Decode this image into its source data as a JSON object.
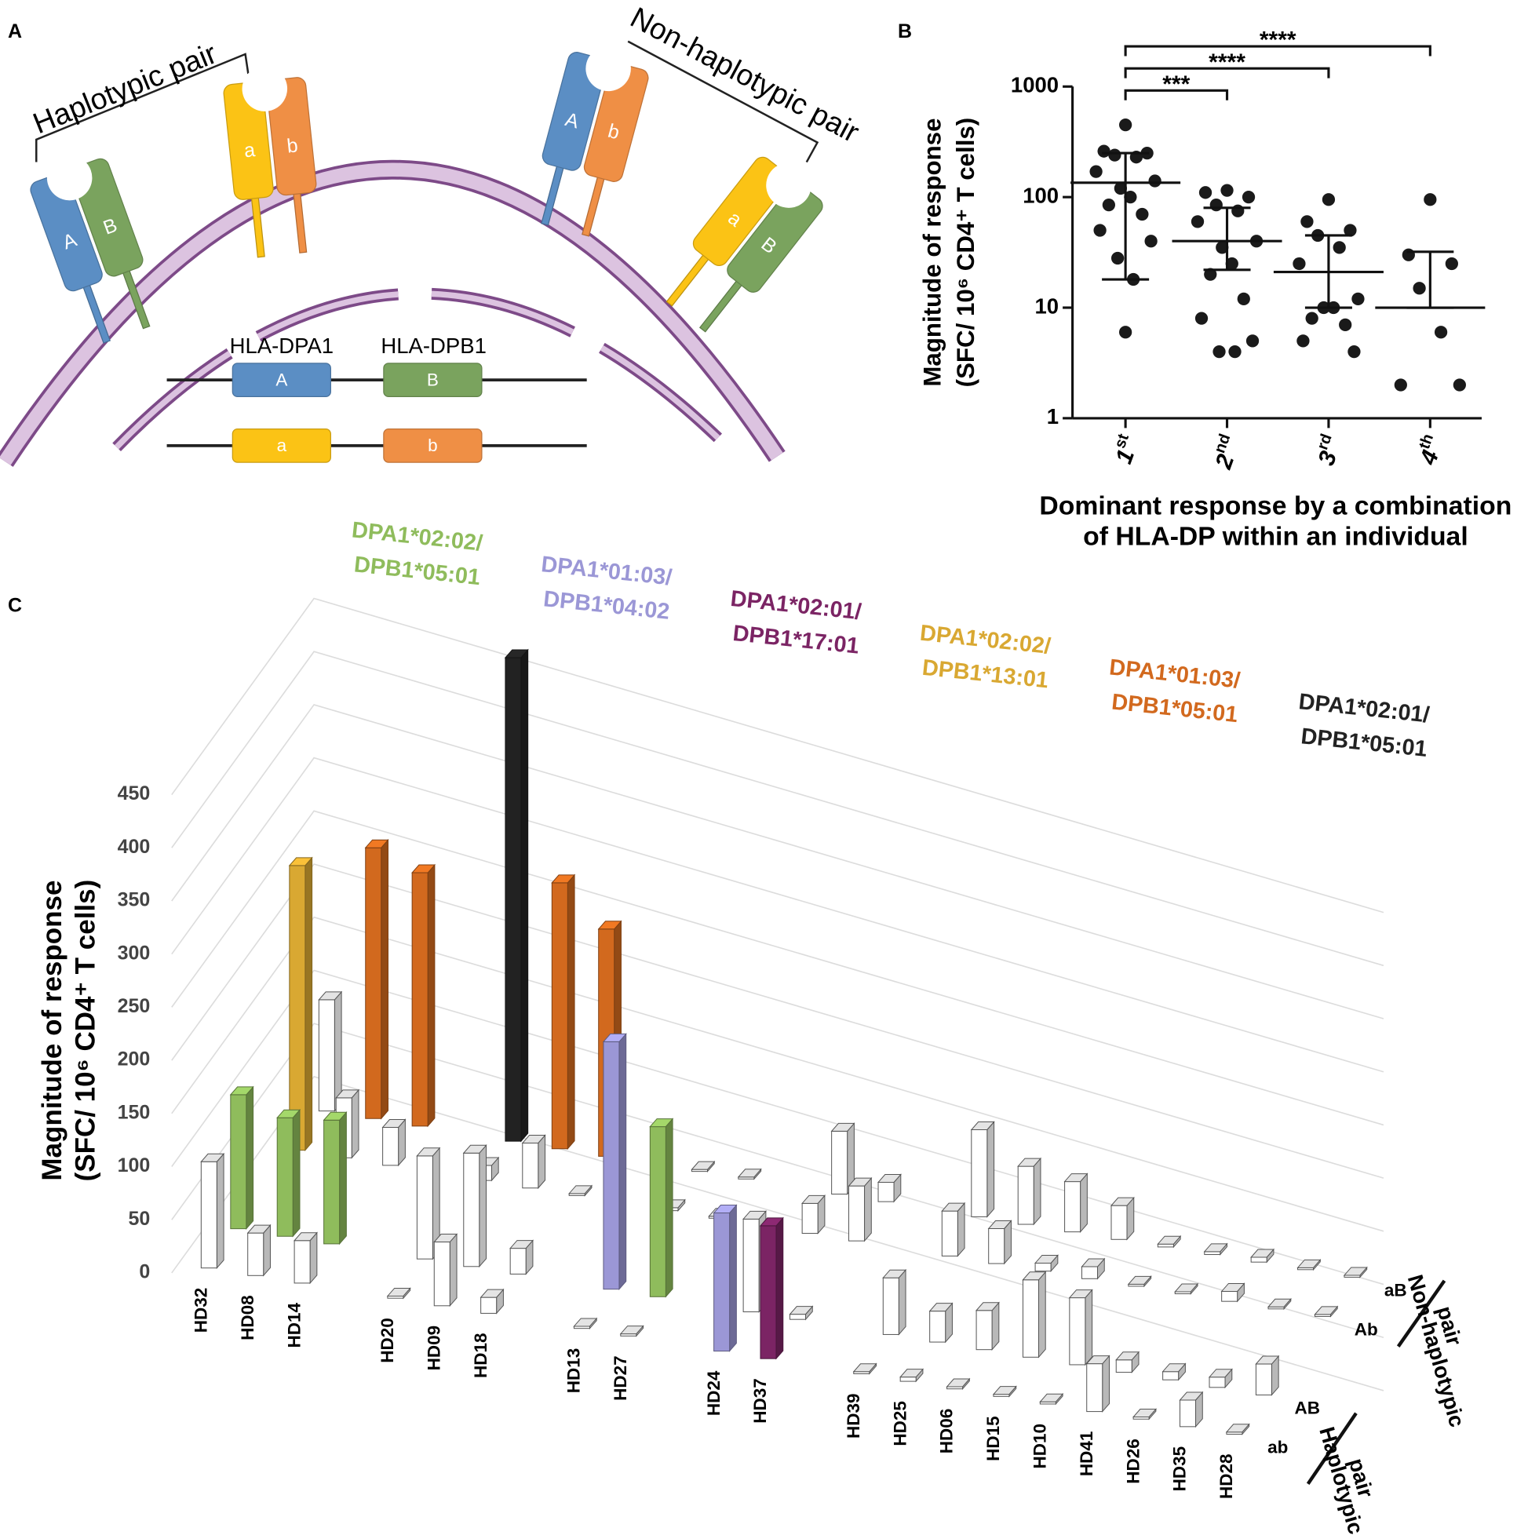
{
  "panel_labels": [
    "A",
    "B",
    "C"
  ],
  "diagram": {
    "bracket_labels": [
      "Haplotypic pair",
      "Non-haplotypic pair"
    ],
    "gene_labels": [
      "HLA-DPA1",
      "HLA-DPB1"
    ],
    "molecules": [
      [
        "A",
        "B"
      ],
      [
        "a",
        "b"
      ],
      [
        "A",
        "b"
      ],
      [
        "a",
        "B"
      ]
    ],
    "genes": [
      [
        "A",
        "B"
      ],
      [
        "a",
        "b"
      ]
    ]
  },
  "chart_data": [
    {
      "type": "dot_plot",
      "y_label": [
        "Magnitude of response",
        "(SFC/ 10⁶ CD4⁺ T cells)"
      ],
      "x_label": [
        "Dominant response by a combination",
        "of HLA-DP within an individual"
      ],
      "categories": [
        "1st",
        "2nd",
        "3rd",
        "4th"
      ],
      "values": [
        [
          450,
          260,
          250,
          240,
          230,
          170,
          140,
          120,
          100,
          85,
          70,
          50,
          40,
          28,
          18,
          6
        ],
        [
          115,
          110,
          100,
          85,
          75,
          60,
          40,
          35,
          25,
          20,
          12,
          8,
          5,
          4,
          4
        ],
        [
          95,
          60,
          50,
          45,
          35,
          25,
          12,
          10,
          10,
          8,
          7,
          5,
          4
        ],
        [
          95,
          30,
          25,
          15,
          6,
          2,
          2
        ]
      ],
      "means": [
        135,
        40,
        21,
        10
      ],
      "sd_upper": [
        250,
        80,
        45,
        32
      ],
      "sd_lower": [
        18,
        22,
        10,
        10
      ],
      "ylim": [
        1,
        1000
      ],
      "yticks": [
        1,
        10,
        100,
        1000
      ],
      "log_y": true,
      "color": "#1a1a1a",
      "significance": [
        "***",
        "****",
        "****"
      ]
    },
    {
      "type": "bar3d",
      "y_label": [
        "Magnitude of response",
        "(SFC/ 10⁶ CD4⁺ T cells)"
      ],
      "ylim": [
        0,
        450
      ],
      "yticks": [
        0,
        50,
        100,
        150,
        200,
        250,
        300,
        350,
        400,
        450
      ],
      "grid": true,
      "donor_groups": [
        [
          "HD32",
          "HD08",
          "HD14"
        ],
        [
          "HD20",
          "HD09",
          "HD18"
        ],
        [
          "HD13",
          "HD27"
        ],
        [
          "HD24",
          "HD37"
        ],
        [
          "HD39",
          "HD25",
          "HD06",
          "HD15",
          "HD10",
          "HD41",
          "HD26",
          "HD35",
          "HD28"
        ]
      ],
      "series": [
        {
          "name": "ab",
          "values": [
            100,
            40,
            40,
            2,
            60,
            15,
            2,
            2,
            130,
            125,
            2,
            4,
            2,
            2,
            2,
            45,
            2,
            25,
            2
          ],
          "colors": [
            "#ffffff",
            "#ffffff",
            "#ffffff",
            "#ffffff",
            "#ffffff",
            "#ffffff",
            "#ffffff",
            "#ffffff",
            "#9b97d6",
            "#7b2464",
            "#ffffff",
            "#ffffff",
            "#ffffff",
            "#ffffff",
            "#ffffff",
            "#ffffff",
            "#ffffff",
            "#ffffff",
            "#ffffff"
          ]
        },
        {
          "name": "AB",
          "values": [
            130,
            115,
            120,
            100,
            110,
            25,
            240,
            165,
            90,
            5,
            55,
            30,
            38,
            75,
            65,
            12,
            8,
            10,
            30
          ],
          "colors": [
            "#8fbc5c",
            "#8fbc5c",
            "#8fbc5c",
            "#ffffff",
            "#ffffff",
            "#ffffff",
            "#9b97d6",
            "#8fbc5c",
            "#ffffff",
            "#ffffff",
            "#ffffff",
            "#ffffff",
            "#ffffff",
            "#ffffff",
            "#ffffff",
            "#ffffff",
            "#ffffff",
            "#ffffff",
            "#ffffff"
          ]
        },
        {
          "name": "Ab",
          "values": [
            285,
            60,
            38,
            15,
            45,
            2,
            3,
            2,
            30,
            55,
            45,
            35,
            8,
            12,
            2,
            2,
            10,
            2,
            2
          ],
          "colors": [
            "#d9a832",
            "#ffffff",
            "#ffffff",
            "#ffffff",
            "#ffffff",
            "#ffffff",
            "#ffffff",
            "#ffffff",
            "#ffffff",
            "#ffffff",
            "#ffffff",
            "#ffffff",
            "#ffffff",
            "#ffffff",
            "#ffffff",
            "#ffffff",
            "#ffffff",
            "#ffffff",
            "#ffffff"
          ]
        },
        {
          "name": "aB",
          "values": [
            115,
            280,
            262,
            500,
            275,
            235,
            2,
            2,
            65,
            20,
            90,
            60,
            52,
            35,
            3,
            3,
            5,
            2,
            2
          ],
          "colors": [
            "#ffffff",
            "#d2691e",
            "#d2691e",
            "#222222",
            "#d2691e",
            "#d2691e",
            "#ffffff",
            "#ffffff",
            "#ffffff",
            "#ffffff",
            "#ffffff",
            "#ffffff",
            "#ffffff",
            "#ffffff",
            "#ffffff",
            "#ffffff",
            "#ffffff",
            "#ffffff",
            "#ffffff"
          ]
        }
      ],
      "row_groups": [
        {
          "lines": [
            "Haplotypic",
            "pair"
          ]
        },
        {
          "lines": [
            "Non-haplotypic",
            "pair"
          ]
        }
      ],
      "combinations": [
        {
          "lines": [
            "DPA1*02:02/",
            "DPB1*05:01"
          ],
          "color": "#8fbc5c"
        },
        {
          "lines": [
            "DPA1*01:03/",
            "DPB1*04:02"
          ],
          "color": "#9b97d6"
        },
        {
          "lines": [
            "DPA1*02:01/",
            "DPB1*17:01"
          ],
          "color": "#7b2464"
        },
        {
          "lines": [
            "DPA1*02:02/",
            "DPB1*13:01"
          ],
          "color": "#d9a832"
        },
        {
          "lines": [
            "DPA1*01:03/",
            "DPB1*05:01"
          ],
          "color": "#d2691e"
        },
        {
          "lines": [
            "DPA1*02:01/",
            "DPB1*05:01"
          ],
          "color": "#222222"
        }
      ]
    }
  ]
}
